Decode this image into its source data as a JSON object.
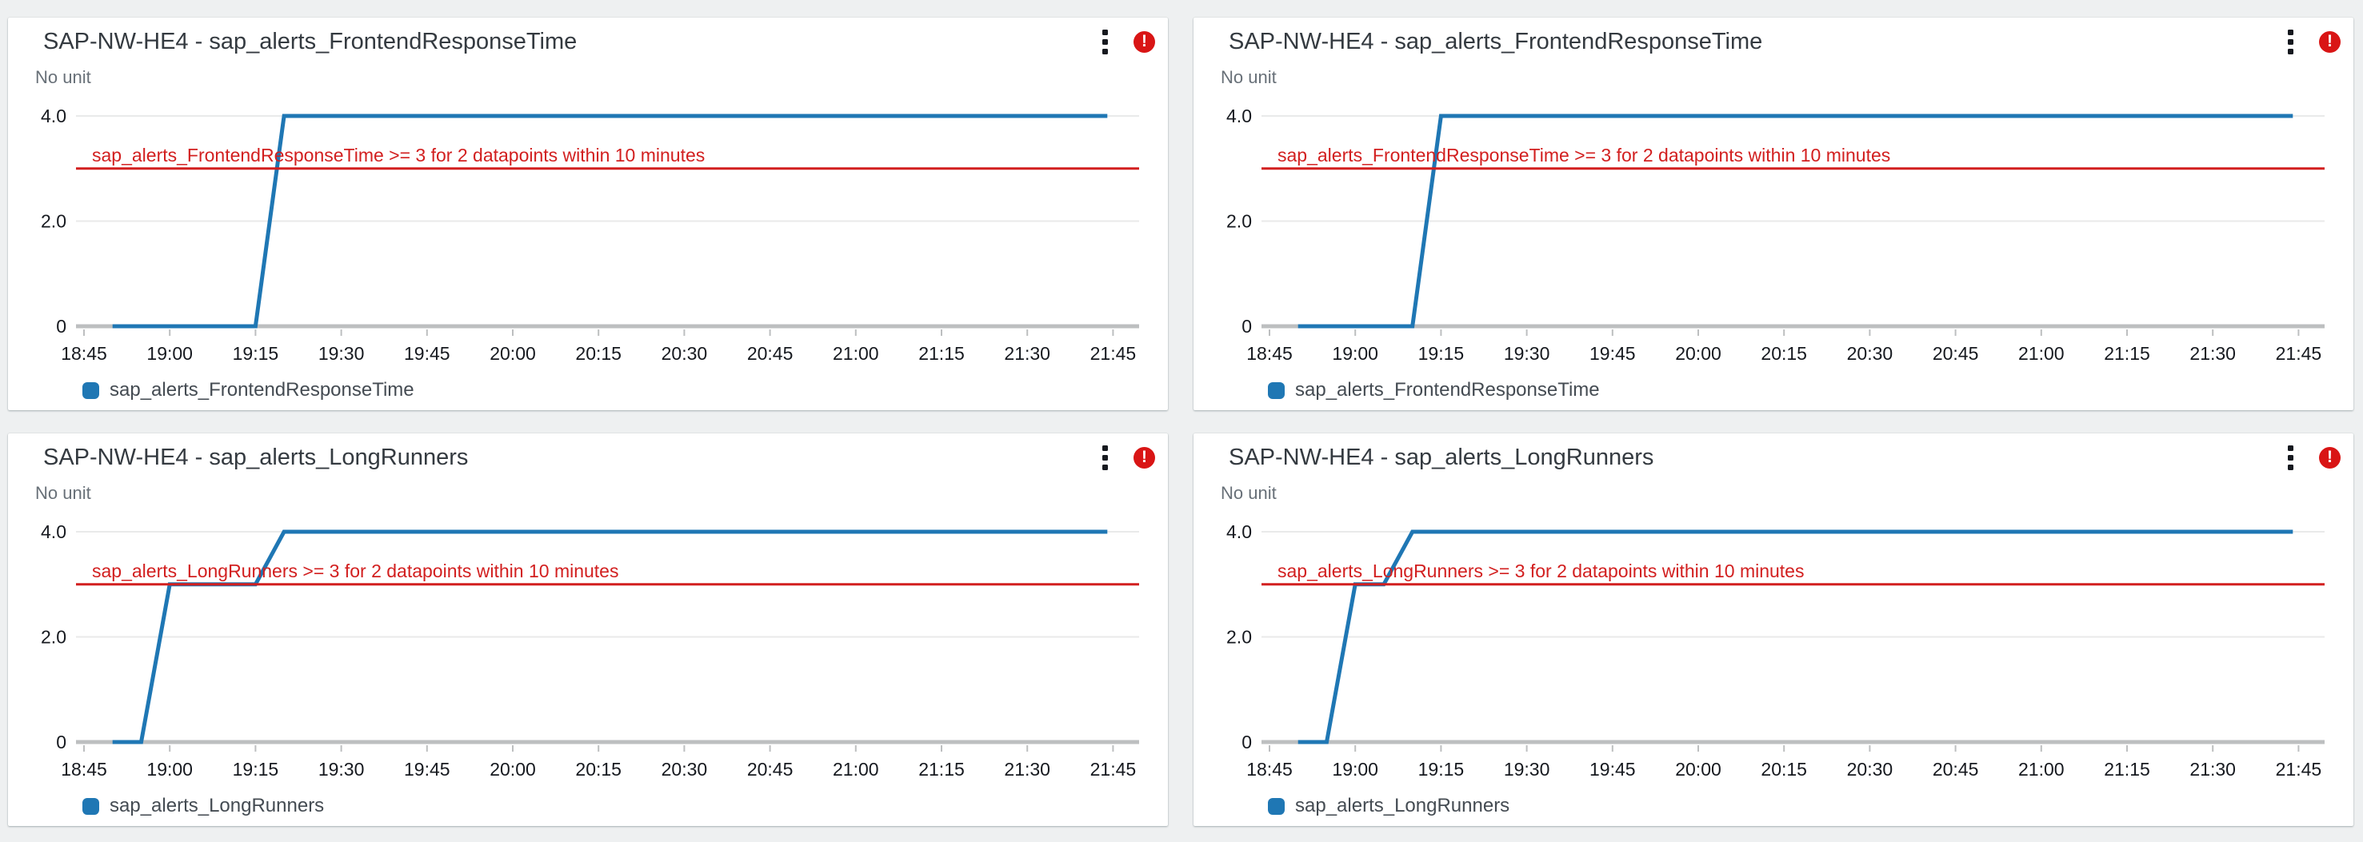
{
  "icons": {
    "menu": "kebab-vertical-icon",
    "alarm_state": "exclamation-circle-icon",
    "alarm_glyph": "!"
  },
  "colors": {
    "series_blue": "#1f77b4",
    "threshold_red": "#d21f1f",
    "alarm_red": "#d91515",
    "gridline": "#e9eaea",
    "axis_line": "#bdbfc0",
    "page_bg": "#eef0f1",
    "panel_bg": "#ffffff"
  },
  "panels": [
    {
      "title": "SAP-NW-HE4 - sap_alerts_FrontendResponseTime",
      "unit_label": "No unit",
      "legend": "sap_alerts_FrontendResponseTime",
      "chart_data": {
        "type": "line",
        "title": "SAP-NW-HE4 - sap_alerts_FrontendResponseTime",
        "xlabel": "",
        "ylabel": "No unit",
        "ylim": [
          0,
          4.4
        ],
        "grid": "horizontal-only",
        "legend_position": "bottom-left",
        "x_ticks": [
          "18:45",
          "19:00",
          "19:15",
          "19:30",
          "19:45",
          "20:00",
          "20:15",
          "20:30",
          "20:45",
          "21:00",
          "21:15",
          "21:30",
          "21:45"
        ],
        "y_tick_values": [
          0,
          2,
          4
        ],
        "y_tick_labels": [
          "0",
          "2.0",
          "4.0"
        ],
        "threshold": {
          "value": 3,
          "label": "sap_alerts_FrontendResponseTime >= 3 for 2 datapoints within 10 minutes"
        },
        "series": [
          {
            "name": "sap_alerts_FrontendResponseTime",
            "points": [
              [
                "18:50",
                0
              ],
              [
                "19:15",
                0
              ],
              [
                "19:20",
                4
              ],
              [
                "21:44",
                4
              ]
            ]
          }
        ]
      }
    },
    {
      "title": "SAP-NW-HE4 - sap_alerts_FrontendResponseTime",
      "unit_label": "No unit",
      "legend": "sap_alerts_FrontendResponseTime",
      "chart_data": {
        "type": "line",
        "title": "SAP-NW-HE4 - sap_alerts_FrontendResponseTime",
        "xlabel": "",
        "ylabel": "No unit",
        "ylim": [
          0,
          4.4
        ],
        "grid": "horizontal-only",
        "legend_position": "bottom-left",
        "x_ticks": [
          "18:45",
          "19:00",
          "19:15",
          "19:30",
          "19:45",
          "20:00",
          "20:15",
          "20:30",
          "20:45",
          "21:00",
          "21:15",
          "21:30",
          "21:45"
        ],
        "y_tick_values": [
          0,
          2,
          4
        ],
        "y_tick_labels": [
          "0",
          "2.0",
          "4.0"
        ],
        "threshold": {
          "value": 3,
          "label": "sap_alerts_FrontendResponseTime >= 3 for 2 datapoints within 10 minutes"
        },
        "series": [
          {
            "name": "sap_alerts_FrontendResponseTime",
            "points": [
              [
                "18:50",
                0
              ],
              [
                "19:10",
                0
              ],
              [
                "19:15",
                4
              ],
              [
                "21:44",
                4
              ]
            ]
          }
        ]
      }
    },
    {
      "title": "SAP-NW-HE4 - sap_alerts_LongRunners",
      "unit_label": "No unit",
      "legend": "sap_alerts_LongRunners",
      "chart_data": {
        "type": "line",
        "title": "SAP-NW-HE4 - sap_alerts_LongRunners",
        "xlabel": "",
        "ylabel": "No unit",
        "ylim": [
          0,
          4.4
        ],
        "grid": "horizontal-only",
        "legend_position": "bottom-left",
        "x_ticks": [
          "18:45",
          "19:00",
          "19:15",
          "19:30",
          "19:45",
          "20:00",
          "20:15",
          "20:30",
          "20:45",
          "21:00",
          "21:15",
          "21:30",
          "21:45"
        ],
        "y_tick_values": [
          0,
          2,
          4
        ],
        "y_tick_labels": [
          "0",
          "2.0",
          "4.0"
        ],
        "threshold": {
          "value": 3,
          "label": "sap_alerts_LongRunners >= 3 for 2 datapoints within 10 minutes"
        },
        "series": [
          {
            "name": "sap_alerts_LongRunners",
            "points": [
              [
                "18:50",
                0
              ],
              [
                "18:55",
                0
              ],
              [
                "19:00",
                3
              ],
              [
                "19:15",
                3
              ],
              [
                "19:20",
                4
              ],
              [
                "21:44",
                4
              ]
            ]
          }
        ]
      }
    },
    {
      "title": "SAP-NW-HE4 - sap_alerts_LongRunners",
      "unit_label": "No unit",
      "legend": "sap_alerts_LongRunners",
      "chart_data": {
        "type": "line",
        "title": "SAP-NW-HE4 - sap_alerts_LongRunners",
        "xlabel": "",
        "ylabel": "No unit",
        "ylim": [
          0,
          4.4
        ],
        "grid": "horizontal-only",
        "legend_position": "bottom-left",
        "x_ticks": [
          "18:45",
          "19:00",
          "19:15",
          "19:30",
          "19:45",
          "20:00",
          "20:15",
          "20:30",
          "20:45",
          "21:00",
          "21:15",
          "21:30",
          "21:45"
        ],
        "y_tick_values": [
          0,
          2,
          4
        ],
        "y_tick_labels": [
          "0",
          "2.0",
          "4.0"
        ],
        "threshold": {
          "value": 3,
          "label": "sap_alerts_LongRunners >= 3 for 2 datapoints within 10 minutes"
        },
        "series": [
          {
            "name": "sap_alerts_LongRunners",
            "points": [
              [
                "18:50",
                0
              ],
              [
                "18:55",
                0
              ],
              [
                "19:00",
                3
              ],
              [
                "19:05",
                3
              ],
              [
                "19:10",
                4
              ],
              [
                "21:44",
                4
              ]
            ]
          }
        ]
      }
    }
  ]
}
